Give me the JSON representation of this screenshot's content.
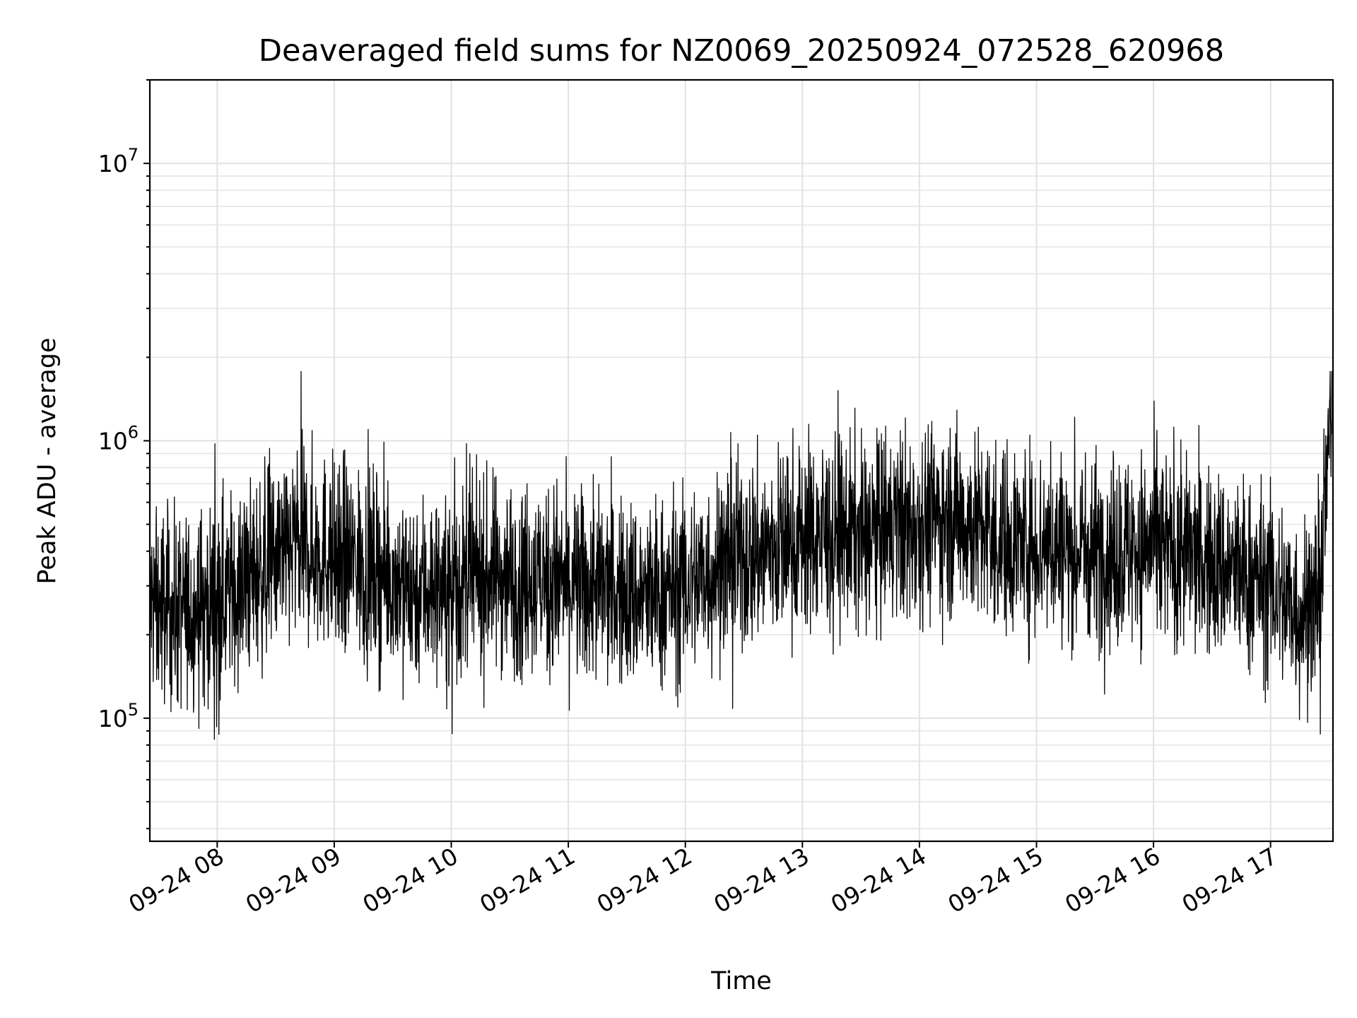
{
  "chart_data": {
    "type": "line",
    "title": "Deaveraged field sums for NZ0069_20250924_072528_620968",
    "xlabel": "Time",
    "ylabel": "Peak ADU - average",
    "yscale": "log",
    "ylim": [
      36000,
      20000000
    ],
    "xlim": [
      "2025-09-24 07:25:28",
      "2025-09-24 17:32"
    ],
    "x_ticks": [
      "09-24 08",
      "09-24 09",
      "09-24 10",
      "09-24 11",
      "09-24 12",
      "09-24 13",
      "09-24 14",
      "09-24 15",
      "09-24 16",
      "09-24 17"
    ],
    "y_ticks": [
      {
        "value": 100000,
        "base": "10",
        "exp": "5"
      },
      {
        "value": 1000000,
        "base": "10",
        "exp": "6"
      },
      {
        "value": 10000000,
        "base": "10",
        "exp": "7"
      }
    ],
    "grid": true,
    "line_color": "#000000",
    "series": [
      {
        "x": [
          "2025-09-24 07:25",
          "2025-09-24 07:40",
          "2025-09-24 08:00",
          "2025-09-24 08:20",
          "2025-09-24 08:40",
          "2025-09-24 09:00",
          "2025-09-24 09:20",
          "2025-09-24 09:40",
          "2025-09-24 10:00",
          "2025-09-24 10:20",
          "2025-09-24 10:40",
          "2025-09-24 11:00",
          "2025-09-24 11:20",
          "2025-09-24 11:40",
          "2025-09-24 12:00",
          "2025-09-24 12:20",
          "2025-09-24 12:40",
          "2025-09-24 13:00",
          "2025-09-24 13:20",
          "2025-09-24 13:40",
          "2025-09-24 14:00",
          "2025-09-24 14:20",
          "2025-09-24 14:40",
          "2025-09-24 15:00",
          "2025-09-24 15:20",
          "2025-09-24 15:40",
          "2025-09-24 16:00",
          "2025-09-24 16:20",
          "2025-09-24 16:40",
          "2025-09-24 17:00",
          "2025-09-24 17:15",
          "2025-09-24 17:25",
          "2025-09-24 17:32"
        ],
        "y": [
          260000,
          240000,
          270000,
          330000,
          420000,
          390000,
          340000,
          300000,
          290000,
          330000,
          320000,
          300000,
          290000,
          270000,
          300000,
          360000,
          400000,
          450000,
          460000,
          470000,
          520000,
          530000,
          440000,
          430000,
          410000,
          400000,
          420000,
          380000,
          340000,
          300000,
          240000,
          260000,
          1700000
        ]
      }
    ]
  }
}
